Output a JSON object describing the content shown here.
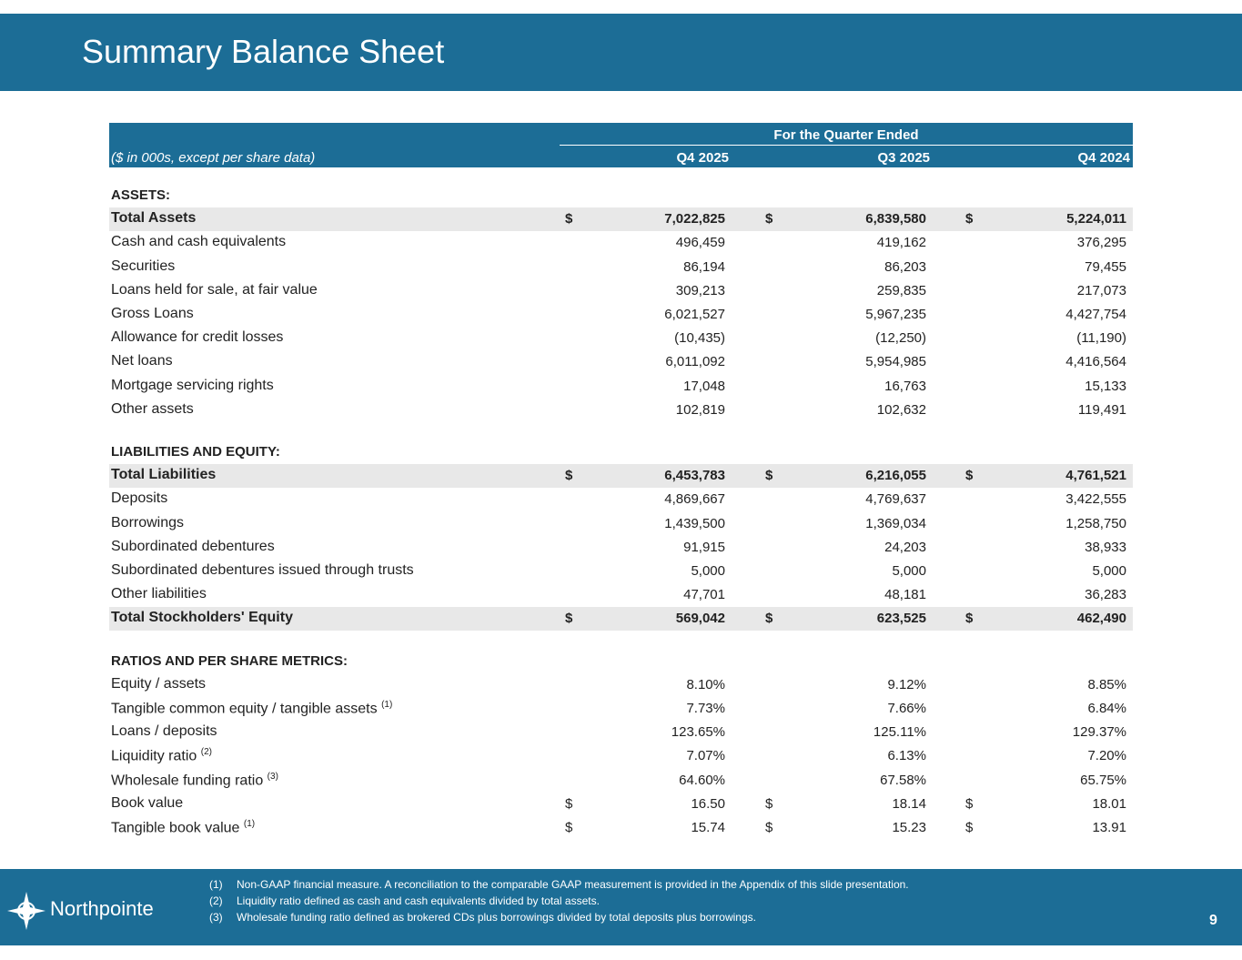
{
  "header": {
    "title": "Summary Balance Sheet"
  },
  "table": {
    "group_header": "For the Quarter Ended",
    "units": "($ in 000s, except per share data)",
    "columns": [
      "Q4 2025",
      "Q3 2025",
      "Q4 2024"
    ],
    "sections": [
      {
        "title": "ASSETS:",
        "rows": [
          {
            "label": "Total Assets",
            "total": true,
            "prefix": "$",
            "values": [
              "7,022,825",
              "6,839,580",
              "5,224,011"
            ]
          },
          {
            "label": "Cash and cash equivalents",
            "values": [
              "496,459",
              "419,162",
              "376,295"
            ]
          },
          {
            "label": "Securities",
            "values": [
              "86,194",
              "86,203",
              "79,455"
            ]
          },
          {
            "label": "Loans held for sale, at fair value",
            "values": [
              "309,213",
              "259,835",
              "217,073"
            ]
          },
          {
            "label": "Gross Loans",
            "values": [
              "6,021,527",
              "5,967,235",
              "4,427,754"
            ]
          },
          {
            "label": "Allowance for credit losses",
            "values": [
              "(10,435)",
              "(12,250)",
              "(11,190)"
            ]
          },
          {
            "label": "Net loans",
            "values": [
              "6,011,092",
              "5,954,985",
              "4,416,564"
            ]
          },
          {
            "label": "Mortgage servicing rights",
            "values": [
              "17,048",
              "16,763",
              "15,133"
            ]
          },
          {
            "label": "Other assets",
            "values": [
              "102,819",
              "102,632",
              "119,491"
            ]
          }
        ]
      },
      {
        "title": "LIABILITIES AND EQUITY:",
        "rows": [
          {
            "label": "Total Liabilities",
            "total": true,
            "prefix": "$",
            "values": [
              "6,453,783",
              "6,216,055",
              "4,761,521"
            ]
          },
          {
            "label": "Deposits",
            "values": [
              "4,869,667",
              "4,769,637",
              "3,422,555"
            ]
          },
          {
            "label": "Borrowings",
            "values": [
              "1,439,500",
              "1,369,034",
              "1,258,750"
            ]
          },
          {
            "label": "Subordinated debentures",
            "values": [
              "91,915",
              "24,203",
              "38,933"
            ]
          },
          {
            "label": "Subordinated debentures issued through trusts",
            "values": [
              "5,000",
              "5,000",
              "5,000"
            ]
          },
          {
            "label": "Other liabilities",
            "values": [
              "47,701",
              "48,181",
              "36,283"
            ]
          },
          {
            "label": "Total Stockholders' Equity",
            "total": true,
            "prefix": "$",
            "values": [
              "569,042",
              "623,525",
              "462,490"
            ]
          }
        ]
      },
      {
        "title": "RATIOS AND PER SHARE METRICS:",
        "rows": [
          {
            "label": "Equity / assets",
            "values": [
              "8.10%",
              "9.12%",
              "8.85%"
            ]
          },
          {
            "label": "Tangible common equity / tangible assets",
            "note": "(1)",
            "values": [
              "7.73%",
              "7.66%",
              "6.84%"
            ]
          },
          {
            "label": "Loans / deposits",
            "values": [
              "123.65%",
              "125.11%",
              "129.37%"
            ]
          },
          {
            "label": "Liquidity ratio",
            "note": "(2)",
            "values": [
              "7.07%",
              "6.13%",
              "7.20%"
            ]
          },
          {
            "label": "Wholesale funding ratio",
            "note": "(3)",
            "values": [
              "64.60%",
              "67.58%",
              "65.75%"
            ]
          },
          {
            "label": "Book value",
            "prefix": "$",
            "values": [
              "16.50",
              "18.14",
              "18.01"
            ]
          },
          {
            "label": "Tangible book value",
            "note": "(1)",
            "prefix": "$",
            "values": [
              "15.74",
              "15.23",
              "13.91"
            ]
          }
        ]
      }
    ]
  },
  "footer": {
    "brand": "Northpointe",
    "page": "9",
    "notes": [
      {
        "marker": "(1)",
        "text": "Non-GAAP financial measure. A reconciliation to the comparable GAAP measurement is provided in the Appendix of this slide presentation."
      },
      {
        "marker": "(2)",
        "text": "Liquidity ratio defined as cash and cash equivalents divided by total assets."
      },
      {
        "marker": "(3)",
        "text": "Wholesale funding ratio defined as brokered CDs plus borrowings divided by total deposits plus borrowings."
      }
    ]
  }
}
